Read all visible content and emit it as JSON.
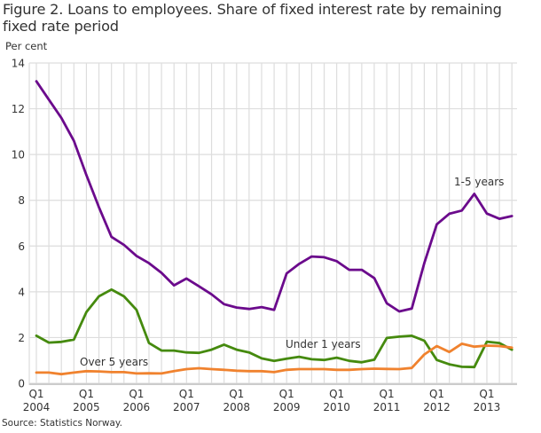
{
  "title": "Figure 2. Loans to employees. Share of fixed interest rate by remaining fixed rate period",
  "ylabel": "Per cent",
  "source": "Source: Statistics Norway.",
  "colors": {
    "one_to_five": "#6b0a8c",
    "under_one": "#458a0e",
    "over_five": "#f0822e",
    "grid": "#dddddd",
    "axis": "#cccccc"
  },
  "chart_data": {
    "type": "line",
    "title": "Figure 2. Loans to employees. Share of fixed interest rate by remaining fixed rate period",
    "xlabel": "",
    "ylabel": "Per cent",
    "ylim": [
      0,
      14
    ],
    "yticks": [
      0,
      2,
      4,
      6,
      8,
      10,
      12,
      14
    ],
    "grid": true,
    "legend_position": "inline labels",
    "x_tick_labels": [
      {
        "index": 0,
        "line1": "Q1",
        "line2": "2004"
      },
      {
        "index": 4,
        "line1": "Q1",
        "line2": "2005"
      },
      {
        "index": 8,
        "line1": "Q1",
        "line2": "2006"
      },
      {
        "index": 12,
        "line1": "Q1",
        "line2": "2007"
      },
      {
        "index": 16,
        "line1": "Q1",
        "line2": "2008"
      },
      {
        "index": 20,
        "line1": "Q1",
        "line2": "2009"
      },
      {
        "index": 24,
        "line1": "Q1",
        "line2": "2010"
      },
      {
        "index": 28,
        "line1": "Q1",
        "line2": "2011"
      },
      {
        "index": 32,
        "line1": "Q1",
        "line2": "2012"
      },
      {
        "index": 36,
        "line1": "Q1",
        "line2": "2013"
      }
    ],
    "x": [
      "2004Q1",
      "2004Q2",
      "2004Q3",
      "2004Q4",
      "2005Q1",
      "2005Q2",
      "2005Q3",
      "2005Q4",
      "2006Q1",
      "2006Q2",
      "2006Q3",
      "2006Q4",
      "2007Q1",
      "2007Q2",
      "2007Q3",
      "2007Q4",
      "2008Q1",
      "2008Q2",
      "2008Q3",
      "2008Q4",
      "2009Q1",
      "2009Q2",
      "2009Q3",
      "2009Q4",
      "2010Q1",
      "2010Q2",
      "2010Q3",
      "2010Q4",
      "2011Q1",
      "2011Q2",
      "2011Q3",
      "2011Q4",
      "2012Q1",
      "2012Q2",
      "2012Q3",
      "2012Q4",
      "2013Q1",
      "2013Q2",
      "2013Q3"
    ],
    "series": [
      {
        "name": "1-5 years",
        "color_key": "one_to_five",
        "label": {
          "text": "1-5 years",
          "x": 512,
          "y": 209
        },
        "values": [
          13.2,
          12.4,
          11.6,
          10.6,
          9.1,
          7.7,
          6.4,
          6.05,
          5.57,
          5.25,
          4.83,
          4.28,
          4.58,
          4.24,
          3.89,
          3.46,
          3.31,
          3.25,
          3.33,
          3.21,
          4.8,
          5.22,
          5.54,
          5.51,
          5.34,
          4.96,
          4.96,
          4.6,
          3.5,
          3.14,
          3.27,
          5.25,
          6.95,
          7.41,
          7.55,
          8.28,
          7.42,
          7.19,
          7.31
        ]
      },
      {
        "name": "Under 1 years",
        "color_key": "under_one",
        "label": {
          "text": "Under 1 years",
          "x": 322,
          "y": 392
        },
        "values": [
          2.08,
          1.78,
          1.81,
          1.91,
          3.11,
          3.8,
          4.1,
          3.8,
          3.21,
          1.76,
          1.43,
          1.43,
          1.35,
          1.33,
          1.47,
          1.69,
          1.47,
          1.35,
          1.09,
          0.98,
          1.08,
          1.16,
          1.05,
          1.02,
          1.12,
          0.98,
          0.92,
          1.03,
          1.98,
          2.04,
          2.08,
          1.86,
          1.02,
          0.83,
          0.72,
          0.71,
          1.82,
          1.76,
          1.47
        ]
      },
      {
        "name": "Over 5 years",
        "color_key": "over_five",
        "label": {
          "text": "Over 5 years",
          "x": 90,
          "y": 412
        },
        "values": [
          0.47,
          0.47,
          0.4,
          0.47,
          0.53,
          0.52,
          0.49,
          0.49,
          0.43,
          0.44,
          0.43,
          0.53,
          0.62,
          0.66,
          0.62,
          0.59,
          0.55,
          0.53,
          0.53,
          0.49,
          0.59,
          0.62,
          0.62,
          0.62,
          0.59,
          0.59,
          0.62,
          0.64,
          0.63,
          0.62,
          0.67,
          1.26,
          1.63,
          1.37,
          1.73,
          1.6,
          1.65,
          1.63,
          1.56
        ]
      }
    ]
  }
}
